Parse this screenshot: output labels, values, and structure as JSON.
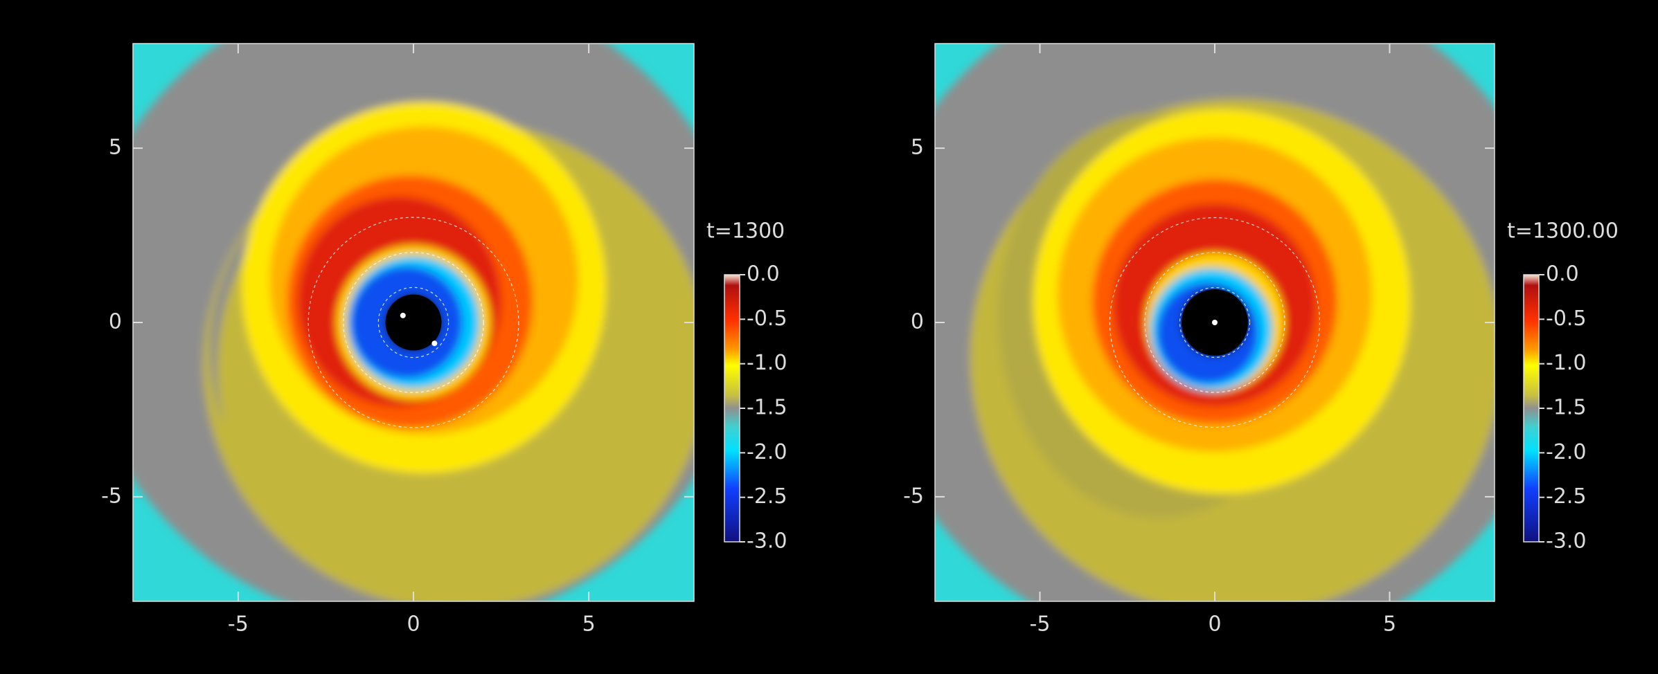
{
  "chart_data": [
    {
      "type": "heatmap",
      "title": "t=1300",
      "xlim": [
        -8,
        8
      ],
      "ylim": [
        -8,
        8
      ],
      "xticks": [
        -5,
        0,
        5
      ],
      "yticks": [
        -5,
        0,
        5
      ],
      "colorbar": {
        "clim": [
          -3,
          0
        ],
        "ticks": [
          {
            "value": 0,
            "label": "0.0"
          },
          -0.5,
          {
            "value": -1,
            "label": "-1.0"
          },
          -1.5,
          {
            "value": -2,
            "label": "-2.0"
          },
          -2.5,
          {
            "value": -3,
            "label": "-3.0"
          }
        ]
      }
    },
    {
      "type": "heatmap",
      "title": "t=1300.00",
      "xlim": [
        -8,
        8
      ],
      "ylim": [
        -8,
        8
      ],
      "xticks": [
        -5,
        0,
        5
      ],
      "yticks": [
        -5,
        0,
        5
      ],
      "colorbar": {
        "clim": [
          -3,
          0
        ],
        "ticks": [
          {
            "value": 0,
            "label": "0.0"
          },
          -0.5,
          {
            "value": -1,
            "label": "-1.0"
          },
          -1.5,
          {
            "value": -2,
            "label": "-2.0"
          },
          -2.5,
          {
            "value": -3,
            "label": "-3.0"
          }
        ]
      }
    }
  ]
}
